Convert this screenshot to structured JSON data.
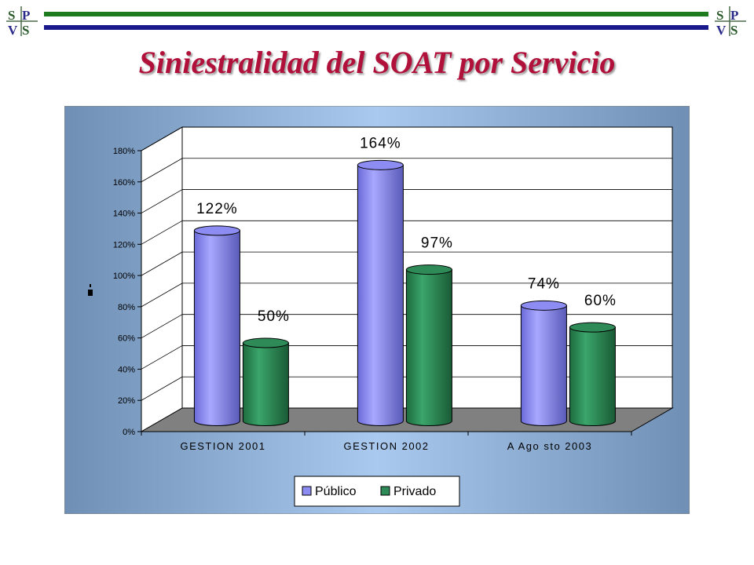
{
  "header": {
    "logo_text": "SPVS",
    "title": "Siniestralidad del SOAT por Servicio"
  },
  "colors": {
    "title": "#b0103a",
    "rule_green": "#1d7a1d",
    "rule_navy": "#1a1a8c",
    "publico": "#8c8cf2",
    "privado": "#2e8b57",
    "plot_background": "#ffffff",
    "floor": "#808080"
  },
  "chart_data": {
    "type": "bar",
    "categories": [
      "GESTION 2001",
      "GESTION 2002",
      "A Agosto 2003"
    ],
    "category_labels": [
      "GESTION 2001",
      "GESTION 2002",
      "A Ago sto 2003"
    ],
    "series": [
      {
        "name": "Público",
        "values": [
          122,
          164,
          74
        ],
        "data_labels": [
          "122%",
          "164%",
          "74%"
        ]
      },
      {
        "name": "Privado",
        "values": [
          50,
          97,
          60
        ],
        "data_labels": [
          "50%",
          "97%",
          "60%"
        ]
      }
    ],
    "ylim": [
      0,
      180
    ],
    "yticks": [
      0,
      20,
      40,
      60,
      80,
      100,
      120,
      140,
      160,
      180
    ],
    "ytick_labels": [
      "0%",
      "20%",
      "40%",
      "60%",
      "80%",
      "100%",
      "120%",
      "140%",
      "160%",
      "180%"
    ],
    "ylabel": "",
    "xlabel": "",
    "grid": true,
    "legend_position": "bottom",
    "style": "3d-cylinder"
  }
}
